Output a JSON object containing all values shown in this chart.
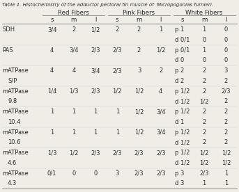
{
  "title": "Table 1. Histochemistry of the adductor pectoral fin muscle of  Micropogonias furnieri.",
  "rows": [
    {
      "label": "SDH",
      "sub": "",
      "red": [
        "3/4",
        "2",
        "1/2"
      ],
      "pink": [
        "2",
        "2",
        "1"
      ],
      "white_p": [
        "p 1",
        "1",
        "0"
      ],
      "white_d": [
        "d 0/1",
        "0",
        "0"
      ]
    },
    {
      "label": "PAS",
      "sub": "",
      "red": [
        "4",
        "3/4",
        "2/3"
      ],
      "pink": [
        "2/3",
        "2",
        "1/2"
      ],
      "white_p": [
        "p 0/1",
        "1",
        "0"
      ],
      "white_d": [
        "d 0",
        "0",
        "0"
      ]
    },
    {
      "label": "mATPase",
      "sub": "S/P",
      "red": [
        "4",
        "4",
        "3/4"
      ],
      "pink": [
        "2/3",
        "3",
        "2"
      ],
      "white_p": [
        "p 2",
        "2",
        "3"
      ],
      "white_d": [
        "d 2",
        "2",
        "2"
      ]
    },
    {
      "label": "mATPase",
      "sub": "9.8",
      "red": [
        "1/4",
        "1/3",
        "2/3"
      ],
      "pink": [
        "1/2",
        "1/2",
        "4"
      ],
      "white_p": [
        "p 1/2",
        "2",
        "2/3"
      ],
      "white_d": [
        "d 1/2",
        "1/2",
        "2"
      ]
    },
    {
      "label": "mATPase",
      "sub": "10.4",
      "red": [
        "1",
        "1",
        "1"
      ],
      "pink": [
        "1",
        "1/2",
        "3/4"
      ],
      "white_p": [
        "p 1/2",
        "2",
        "2"
      ],
      "white_d": [
        "d 1",
        "2",
        "2"
      ]
    },
    {
      "label": "mATPase",
      "sub": "10.6",
      "red": [
        "1",
        "1",
        "1"
      ],
      "pink": [
        "1",
        "1/2",
        "3/4"
      ],
      "white_p": [
        "p 1/2",
        "2",
        "2"
      ],
      "white_d": [
        "d 1/2",
        "2",
        "2"
      ]
    },
    {
      "label": "mATPase",
      "sub": "4.6",
      "red": [
        "1/3",
        "1/2",
        "2/3"
      ],
      "pink": [
        "2/3",
        "2/3",
        "2/3"
      ],
      "white_p": [
        "p 1/2",
        "1/2",
        "1/2"
      ],
      "white_d": [
        "d 1/2",
        "1/2",
        "1/2"
      ]
    },
    {
      "label": "mATPase",
      "sub": "4.3",
      "red": [
        "0/1",
        "0",
        "0"
      ],
      "pink": [
        "3",
        "2/3",
        "2/3"
      ],
      "white_p": [
        "p 3",
        "2/3",
        "1"
      ],
      "white_d": [
        "d 3",
        "1",
        "1"
      ]
    }
  ],
  "bg_color": "#f0ede6",
  "text_color": "#2a2a2a",
  "line_color": "#888888"
}
